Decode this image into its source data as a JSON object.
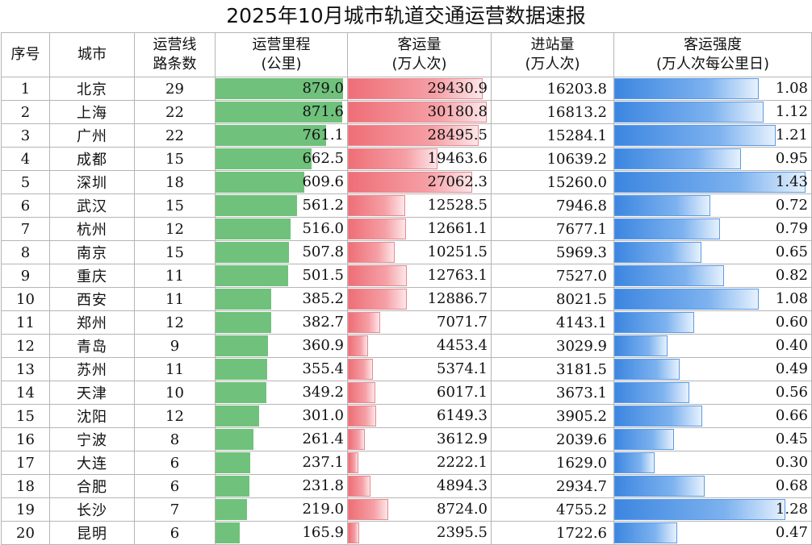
{
  "title": "2025年10月城市轨道交通运营数据速报",
  "headers": {
    "index": [
      "序号"
    ],
    "city": [
      "城市"
    ],
    "lines": [
      "运营线",
      "路条数"
    ],
    "mileage": [
      "运营里程",
      "(公里)"
    ],
    "passengers": [
      "客运量",
      "(万人次)"
    ],
    "entries": [
      "进站量",
      "(万人次)"
    ],
    "intensity": [
      "客运强度",
      "(万人次每公里日)"
    ]
  },
  "colors": {
    "mileage_bar": "#6fc17c",
    "passengers_bar": "#ef6e76",
    "intensity_bar": "#3c86e0"
  },
  "rows": [
    {
      "index": "1",
      "city": "北京",
      "lines": "29",
      "mileage": "879.0",
      "passengers": "29430.9",
      "entries": "16203.8",
      "intensity": "1.08"
    },
    {
      "index": "2",
      "city": "上海",
      "lines": "22",
      "mileage": "871.6",
      "passengers": "30180.8",
      "entries": "16813.2",
      "intensity": "1.12"
    },
    {
      "index": "3",
      "city": "广州",
      "lines": "22",
      "mileage": "761.1",
      "passengers": "28495.5",
      "entries": "15284.1",
      "intensity": "1.21"
    },
    {
      "index": "4",
      "city": "成都",
      "lines": "15",
      "mileage": "662.5",
      "passengers": "19463.6",
      "entries": "10639.2",
      "intensity": "0.95"
    },
    {
      "index": "5",
      "city": "深圳",
      "lines": "18",
      "mileage": "609.6",
      "passengers": "27062.3",
      "entries": "15260.0",
      "intensity": "1.43"
    },
    {
      "index": "6",
      "city": "武汉",
      "lines": "15",
      "mileage": "561.2",
      "passengers": "12528.5",
      "entries": "7946.8",
      "intensity": "0.72"
    },
    {
      "index": "7",
      "city": "杭州",
      "lines": "12",
      "mileage": "516.0",
      "passengers": "12661.1",
      "entries": "7677.1",
      "intensity": "0.79"
    },
    {
      "index": "8",
      "city": "南京",
      "lines": "15",
      "mileage": "507.8",
      "passengers": "10251.5",
      "entries": "5969.3",
      "intensity": "0.65"
    },
    {
      "index": "9",
      "city": "重庆",
      "lines": "11",
      "mileage": "501.5",
      "passengers": "12763.1",
      "entries": "7527.0",
      "intensity": "0.82"
    },
    {
      "index": "10",
      "city": "西安",
      "lines": "11",
      "mileage": "385.2",
      "passengers": "12886.7",
      "entries": "8021.5",
      "intensity": "1.08"
    },
    {
      "index": "11",
      "city": "郑州",
      "lines": "12",
      "mileage": "382.7",
      "passengers": "7071.7",
      "entries": "4143.1",
      "intensity": "0.60"
    },
    {
      "index": "12",
      "city": "青岛",
      "lines": "9",
      "mileage": "360.9",
      "passengers": "4453.4",
      "entries": "3029.9",
      "intensity": "0.40"
    },
    {
      "index": "13",
      "city": "苏州",
      "lines": "11",
      "mileage": "355.4",
      "passengers": "5374.1",
      "entries": "3181.5",
      "intensity": "0.49"
    },
    {
      "index": "14",
      "city": "天津",
      "lines": "10",
      "mileage": "349.2",
      "passengers": "6017.1",
      "entries": "3673.1",
      "intensity": "0.56"
    },
    {
      "index": "15",
      "city": "沈阳",
      "lines": "12",
      "mileage": "301.0",
      "passengers": "6149.3",
      "entries": "3905.2",
      "intensity": "0.66"
    },
    {
      "index": "16",
      "city": "宁波",
      "lines": "8",
      "mileage": "261.4",
      "passengers": "3612.9",
      "entries": "2039.6",
      "intensity": "0.45"
    },
    {
      "index": "17",
      "city": "大连",
      "lines": "6",
      "mileage": "237.1",
      "passengers": "2222.1",
      "entries": "1629.0",
      "intensity": "0.30"
    },
    {
      "index": "18",
      "city": "合肥",
      "lines": "6",
      "mileage": "231.8",
      "passengers": "4894.3",
      "entries": "2934.7",
      "intensity": "0.68"
    },
    {
      "index": "19",
      "city": "长沙",
      "lines": "7",
      "mileage": "219.0",
      "passengers": "8724.0",
      "entries": "4755.2",
      "intensity": "1.28"
    },
    {
      "index": "20",
      "city": "昆明",
      "lines": "6",
      "mileage": "165.9",
      "passengers": "2395.5",
      "entries": "1722.6",
      "intensity": "0.47"
    }
  ]
}
